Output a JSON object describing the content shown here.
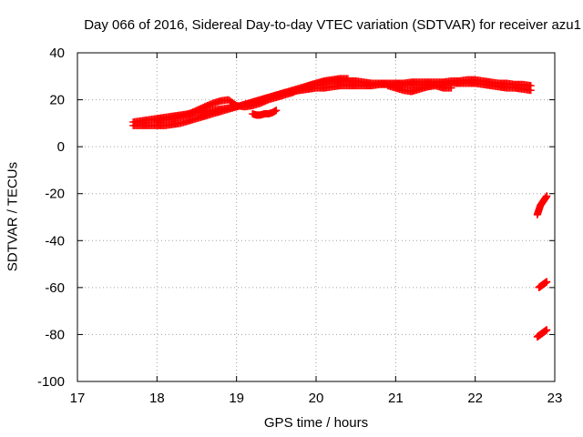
{
  "chart_data": {
    "type": "scatter",
    "title": "Day 066 of 2016, Sidereal Day-to-day VTEC variation (SDTVAR) for receiver azu1",
    "xlabel": "GPS time / hours",
    "ylabel": "SDTVAR / TECUs",
    "xlim": [
      17,
      23
    ],
    "ylim": [
      -100,
      40
    ],
    "xticks": [
      "17",
      "18",
      "19",
      "20",
      "21",
      "22",
      "23"
    ],
    "yticks": [
      "40",
      "20",
      "0",
      "-20",
      "-40",
      "-60",
      "-80",
      "-100"
    ],
    "grid": true,
    "marker": "plus",
    "series_color": "#ff0000",
    "series": [
      {
        "x": [
          17.7,
          17.8,
          17.9,
          18.0,
          18.1,
          18.2,
          18.3,
          18.4,
          18.5,
          18.6,
          18.7,
          18.8,
          18.9,
          19.0,
          19.1,
          19.2,
          19.3,
          19.4,
          19.5,
          19.6,
          19.7,
          19.8,
          19.9,
          20.0,
          20.1,
          20.2,
          20.3,
          20.4,
          20.5,
          20.6,
          20.7,
          20.8,
          20.9,
          21.0,
          21.1,
          21.2,
          21.3,
          21.4,
          21.5,
          21.6,
          21.7,
          21.8,
          21.9,
          22.0,
          22.1,
          22.2,
          22.3,
          22.4,
          22.5,
          22.6,
          22.7
        ],
        "y": [
          9,
          9,
          9,
          9,
          9,
          9.5,
          10,
          11,
          12,
          13,
          14,
          15,
          16,
          17,
          18,
          19,
          20,
          21,
          22,
          23,
          23.5,
          24,
          24.5,
          25,
          25,
          25.5,
          26,
          26,
          26,
          26,
          26,
          26.5,
          26.5,
          26.5,
          26.5,
          26.5,
          26.5,
          26.5,
          26.5,
          26.5,
          27,
          27,
          27,
          27,
          26.5,
          26,
          25.5,
          25,
          25,
          24.5,
          24
        ]
      },
      {
        "x": [
          17.7,
          17.8,
          17.9,
          18.0,
          18.1,
          18.2,
          18.3,
          18.4,
          18.5,
          18.6,
          18.7,
          18.8,
          18.9,
          19.0,
          19.1,
          19.2,
          19.3,
          19.4,
          19.5,
          19.6,
          19.7,
          19.8,
          19.9,
          20.0,
          20.1,
          20.2,
          20.3,
          20.4,
          20.5,
          20.6,
          20.7,
          20.8,
          20.9,
          21.0,
          21.1,
          21.2,
          21.3,
          21.4,
          21.5,
          21.6,
          21.7,
          21.8,
          21.9,
          22.0,
          22.1,
          22.2,
          22.3,
          22.4,
          22.5,
          22.6,
          22.7
        ],
        "y": [
          10.5,
          11,
          11.5,
          12,
          12.5,
          13,
          13.5,
          14,
          14.5,
          15,
          15.5,
          16,
          16.5,
          17,
          18,
          19,
          20,
          21,
          22,
          23,
          24,
          25,
          26,
          27,
          27.5,
          28,
          28,
          28,
          28,
          27.5,
          27,
          27,
          27,
          27,
          27,
          27.5,
          27.5,
          27.5,
          27.5,
          27.5,
          28,
          28,
          28.5,
          28.5,
          28,
          27.5,
          27,
          27,
          26.5,
          26.5,
          26
        ]
      },
      {
        "x": [
          18.0,
          18.1,
          18.2,
          18.3,
          18.4,
          18.5,
          18.6,
          18.7,
          18.8,
          18.9,
          19.0,
          19.1,
          19.2,
          19.3,
          19.4,
          19.5,
          19.6,
          19.7,
          19.8,
          19.9,
          20.0,
          20.1,
          20.2,
          20.3,
          20.4
        ],
        "y": [
          11,
          11.5,
          12,
          13,
          14,
          15.5,
          17,
          18.5,
          19.5,
          20,
          17.5,
          17,
          17.5,
          18.5,
          20,
          21,
          22,
          23,
          24.5,
          26,
          27,
          28,
          28.5,
          29,
          29
        ]
      },
      {
        "x": [
          19.2,
          19.25,
          19.3,
          19.35,
          19.4,
          19.45,
          19.5
        ],
        "y": [
          14,
          13.5,
          13.5,
          14,
          14,
          14.5,
          15.5
        ]
      },
      {
        "x": [
          20.9,
          21.0,
          21.1,
          21.2,
          21.3,
          21.4,
          21.5,
          21.6,
          21.7
        ],
        "y": [
          26,
          25,
          24,
          23.5,
          24.5,
          25.5,
          26,
          25,
          25
        ]
      },
      {
        "x": [
          22.78,
          22.8,
          22.82,
          22.84,
          22.86,
          22.88,
          22.9
        ],
        "y": [
          -29,
          -27,
          -25,
          -24,
          -23,
          -22,
          -21
        ]
      },
      {
        "x": [
          22.8,
          22.82,
          22.84,
          22.86,
          22.88,
          22.9
        ],
        "y": [
          -60,
          -59.5,
          -59,
          -58.5,
          -58,
          -57.5
        ]
      },
      {
        "x": [
          22.78,
          22.8,
          22.82,
          22.84,
          22.86,
          22.88,
          22.9
        ],
        "y": [
          -81,
          -80.5,
          -80,
          -79.5,
          -79,
          -78.5,
          -78
        ]
      }
    ]
  }
}
